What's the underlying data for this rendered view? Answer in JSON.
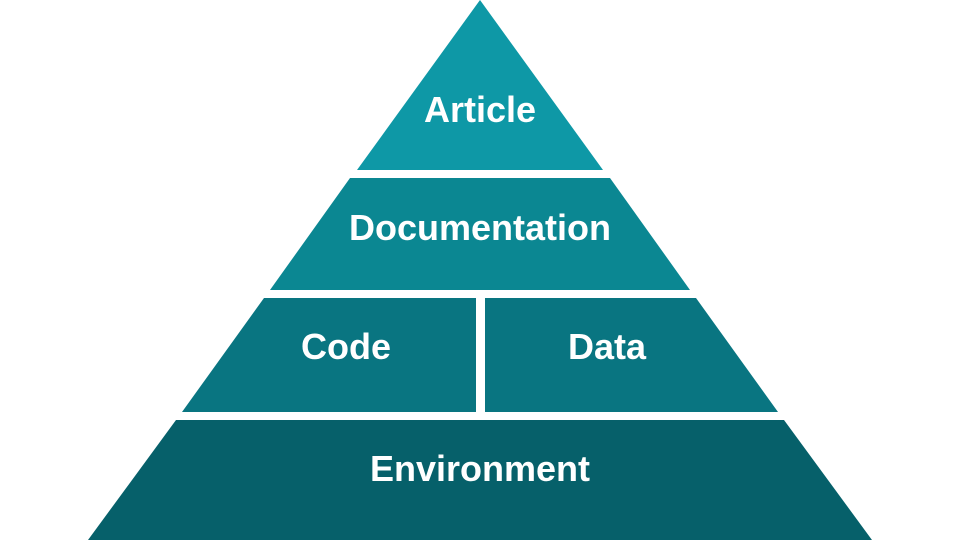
{
  "pyramid": {
    "tiers": [
      {
        "id": "article",
        "label": "Article",
        "color": "#0E98A6"
      },
      {
        "id": "documentation",
        "label": "Documentation",
        "color": "#0B8792"
      },
      {
        "id": "code",
        "label": "Code",
        "color": "#097581"
      },
      {
        "id": "data",
        "label": "Data",
        "color": "#097581"
      },
      {
        "id": "environment",
        "label": "Environment",
        "color": "#06606A"
      }
    ]
  }
}
